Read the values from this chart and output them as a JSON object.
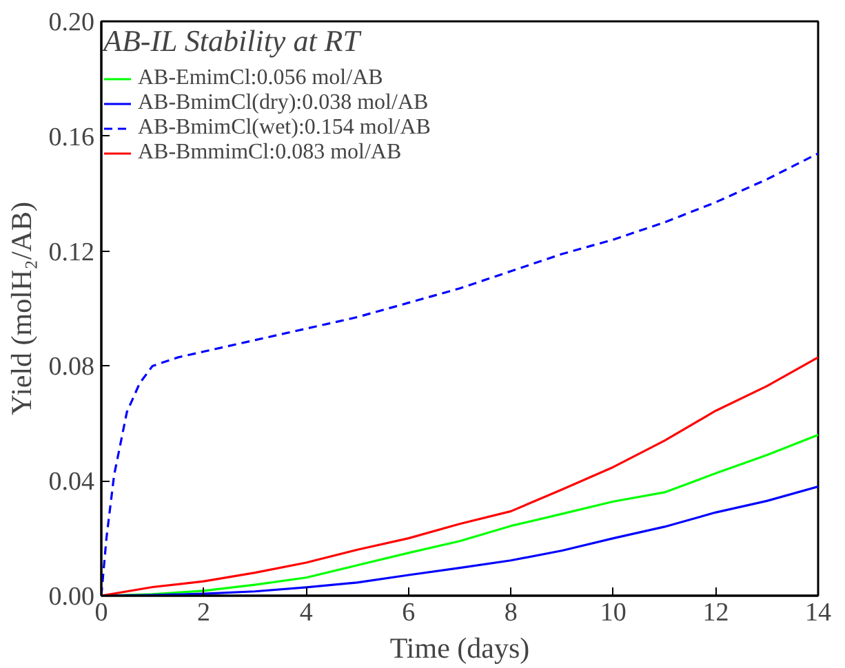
{
  "chart_data": {
    "type": "line",
    "xlabel": "Time (days)",
    "ylabel": "Yield (molH₂/AB)",
    "legend_title": "AB-IL Stability at RT",
    "legend": "top left",
    "grid": false,
    "marker": "none",
    "xlim": [
      0,
      14
    ],
    "xticks": [
      0,
      2,
      4,
      6,
      8,
      10,
      12,
      14
    ],
    "ylim": [
      0,
      0.2
    ],
    "yticks": [
      {
        "value": 0,
        "label": "0.00"
      },
      {
        "value": 0.04,
        "label": "0.04"
      },
      {
        "value": 0.08,
        "label": "0.08"
      },
      {
        "value": 0.12,
        "label": "0.12"
      },
      {
        "value": 0.16,
        "label": "0.16"
      },
      {
        "value": 0.2,
        "label": "0.20"
      }
    ],
    "series": [
      {
        "name": "AB-EmimCl:0.056 mol/AB",
        "color": "#00ff00",
        "line_style": "solid",
        "x": [
          0,
          1,
          2,
          3,
          4,
          5,
          6,
          7,
          8,
          9,
          10,
          11,
          12,
          13,
          14
        ],
        "values": [
          0,
          0.0005,
          0.0017,
          0.0038,
          0.0063,
          0.0106,
          0.0149,
          0.019,
          0.0243,
          0.0285,
          0.0328,
          0.036,
          0.0426,
          0.049,
          0.056
        ]
      },
      {
        "name": "AB-BmimCl(dry):0.038 mol/AB",
        "color": "#0000ff",
        "line_style": "solid",
        "x": [
          0,
          1,
          2,
          3,
          4,
          5,
          6,
          7,
          8,
          9,
          10,
          11,
          12,
          13,
          14
        ],
        "values": [
          0,
          0.0002,
          0.0007,
          0.0015,
          0.0029,
          0.0046,
          0.0072,
          0.0097,
          0.0123,
          0.0157,
          0.02,
          0.024,
          0.029,
          0.033,
          0.038
        ]
      },
      {
        "name": "AB-BmimCl(wet):0.154 mol/AB",
        "color": "#0000ff",
        "line_style": "dashed",
        "x": [
          0,
          0.1,
          0.25,
          0.5,
          0.75,
          1,
          1.5,
          2,
          3,
          4,
          5,
          6,
          7,
          8,
          9,
          10,
          11,
          12,
          13,
          14
        ],
        "values": [
          0,
          0.02,
          0.042,
          0.064,
          0.074,
          0.08,
          0.083,
          0.085,
          0.089,
          0.093,
          0.097,
          0.102,
          0.107,
          0.113,
          0.119,
          0.124,
          0.13,
          0.137,
          0.145,
          0.154
        ]
      },
      {
        "name": "AB-BmmimCl:0.083 mol/AB",
        "color": "#ff0000",
        "line_style": "solid",
        "x": [
          0,
          1,
          2,
          3,
          4,
          5,
          6,
          7,
          8,
          9,
          10,
          11,
          12,
          13,
          14
        ],
        "values": [
          0,
          0.003,
          0.005,
          0.008,
          0.0115,
          0.016,
          0.02,
          0.025,
          0.0294,
          0.037,
          0.0448,
          0.054,
          0.0644,
          0.073,
          0.083
        ]
      }
    ]
  }
}
